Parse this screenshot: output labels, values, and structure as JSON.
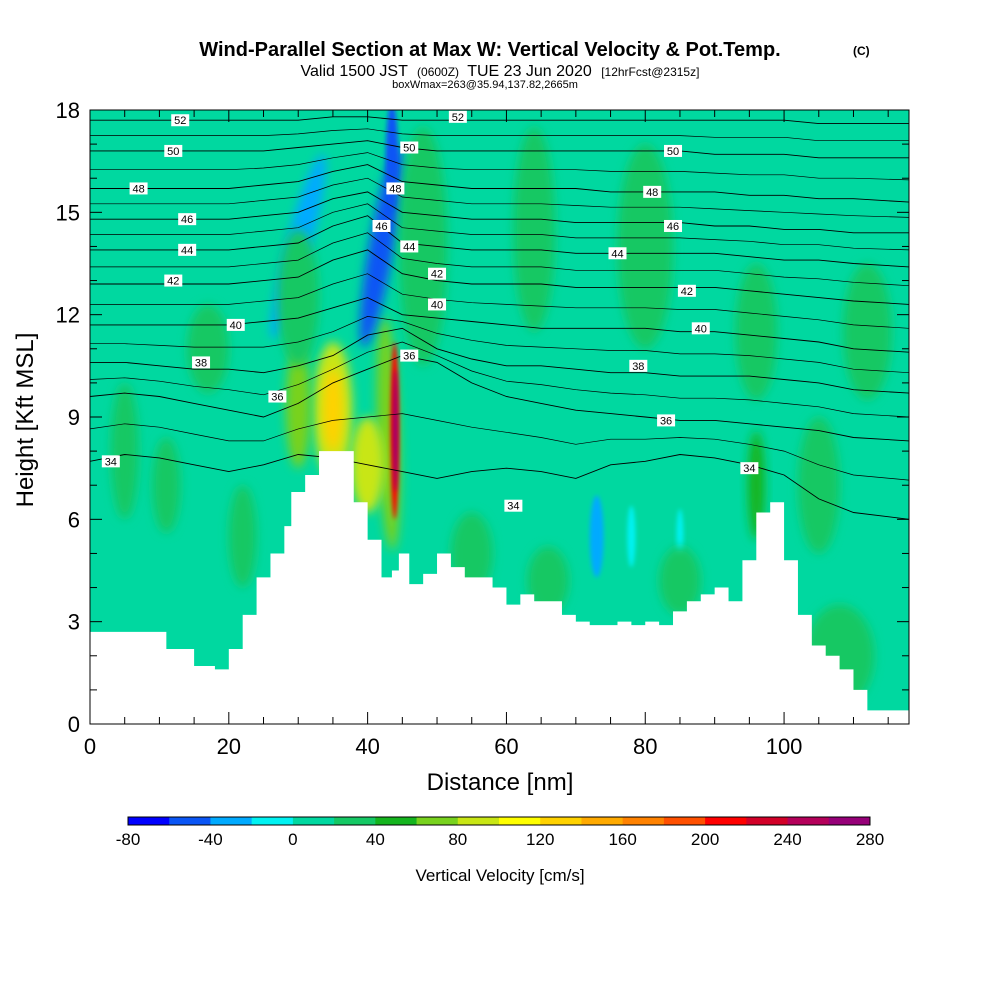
{
  "chart_data": {
    "type": "heatmap",
    "title": "Wind-Parallel Section at Max W: Vertical Velocity & Pot.Temp.",
    "title_mark": "(C)",
    "subtitle_main": "Valid 1500 JST",
    "subtitle_utc": "(0600Z)",
    "subtitle_date": "TUE 23 Jun 2020",
    "subtitle_fcst": "[12hrFcst@2315z]",
    "subtitle2": "boxWmax=263@35.94,137.82,2665m",
    "xlabel": "Distance [nm]",
    "ylabel": "Height [Kft MSL]",
    "xlim": [
      0,
      118
    ],
    "ylim": [
      0,
      18
    ],
    "xticks": [
      "0",
      "20",
      "40",
      "60",
      "80",
      "100"
    ],
    "yticks": [
      "0",
      "3",
      "6",
      "9",
      "12",
      "15",
      "18"
    ],
    "colorbar": {
      "label": "Vertical Velocity [cm/s]",
      "min": -80,
      "max": 280,
      "step": 20,
      "tick_labels": [
        "-80",
        "-40",
        "0",
        "40",
        "80",
        "120",
        "160",
        "200",
        "240",
        "280"
      ],
      "colors": [
        "#0000ff",
        "#0a55f5",
        "#00aaff",
        "#00f2f2",
        "#00d8a0",
        "#14c864",
        "#14b41e",
        "#78d21e",
        "#c8e614",
        "#ffff00",
        "#ffd200",
        "#ffaa00",
        "#ff8200",
        "#ff5000",
        "#ff0000",
        "#d20028",
        "#b4005a",
        "#960078"
      ]
    },
    "terrain": {
      "x": [
        0,
        6,
        11,
        15,
        18,
        20,
        22,
        24,
        26,
        28,
        29,
        31,
        33,
        36,
        38,
        40,
        42,
        43.5,
        44.5,
        46,
        48,
        50,
        52,
        54,
        56,
        58,
        60,
        62,
        64,
        66,
        68,
        70,
        72,
        74,
        76,
        78,
        80,
        82,
        84,
        86,
        88,
        90,
        92,
        94,
        96,
        98,
        100,
        102,
        104,
        106,
        108,
        110,
        112,
        118
      ],
      "heights_kft": [
        2.7,
        2.7,
        2.2,
        1.7,
        1.6,
        2.2,
        3.2,
        4.3,
        5.0,
        5.8,
        6.8,
        7.3,
        8.0,
        8.0,
        6.5,
        5.4,
        4.3,
        4.5,
        5.0,
        4.1,
        4.4,
        5.0,
        4.6,
        4.3,
        4.3,
        4.0,
        3.5,
        3.8,
        3.6,
        3.6,
        3.2,
        3.0,
        2.9,
        2.9,
        3.0,
        2.9,
        3.0,
        2.9,
        3.3,
        3.6,
        3.8,
        4.0,
        3.6,
        4.8,
        6.2,
        6.5,
        4.8,
        3.2,
        2.3,
        2.0,
        1.6,
        1.0,
        0.4,
        0.4
      ]
    },
    "theta_contours": [
      {
        "value": 34,
        "label": "34",
        "heights_kft": [
          7.7,
          7.9,
          7.8,
          7.6,
          7.4,
          7.6,
          7.9,
          7.8,
          7.6,
          7.4,
          7.2,
          7.4,
          7.5,
          7.4,
          7.2,
          7.6,
          7.7,
          7.9,
          7.8,
          7.6,
          7.3,
          6.6,
          6.2,
          6.0
        ]
      },
      {
        "value": 36,
        "label": "36",
        "heights_kft": [
          9.6,
          9.7,
          9.6,
          9.4,
          9.2,
          9.0,
          9.4,
          10.0,
          10.4,
          10.8,
          10.6,
          10.0,
          9.6,
          9.4,
          9.2,
          9.1,
          9.0,
          8.9,
          8.9,
          8.8,
          8.7,
          8.6,
          8.4,
          8.3
        ]
      },
      {
        "value": 38,
        "label": "38",
        "heights_kft": [
          10.6,
          10.6,
          10.5,
          10.4,
          10.4,
          10.3,
          10.5,
          10.8,
          11.4,
          11.6,
          11.0,
          10.7,
          10.5,
          10.5,
          10.4,
          10.3,
          10.3,
          10.2,
          10.2,
          10.2,
          10.1,
          10.0,
          9.8,
          9.7
        ]
      },
      {
        "value": 40,
        "label": "40",
        "heights_kft": [
          11.7,
          11.7,
          11.7,
          11.7,
          11.7,
          11.8,
          11.9,
          12.2,
          12.5,
          12.0,
          11.9,
          11.8,
          11.7,
          11.6,
          11.6,
          11.6,
          11.6,
          11.5,
          11.5,
          11.4,
          11.3,
          11.2,
          11.0,
          10.9
        ]
      },
      {
        "value": 42,
        "label": "42",
        "heights_kft": [
          12.9,
          12.9,
          12.9,
          12.9,
          12.9,
          13.0,
          13.1,
          13.6,
          13.9,
          13.2,
          13.0,
          12.9,
          12.9,
          12.9,
          12.8,
          12.8,
          12.8,
          12.8,
          12.8,
          12.7,
          12.6,
          12.5,
          12.4,
          12.3
        ]
      },
      {
        "value": 44,
        "label": "44",
        "heights_kft": [
          13.9,
          13.9,
          13.9,
          13.9,
          13.9,
          14.0,
          14.1,
          14.6,
          14.9,
          14.1,
          14.0,
          13.9,
          13.9,
          13.9,
          13.8,
          13.8,
          13.8,
          13.8,
          13.8,
          13.7,
          13.6,
          13.6,
          13.5,
          13.4
        ]
      },
      {
        "value": 46,
        "label": "46",
        "heights_kft": [
          14.8,
          14.8,
          14.8,
          14.8,
          14.8,
          14.9,
          15.0,
          15.4,
          15.6,
          15.0,
          14.9,
          14.8,
          14.8,
          14.8,
          14.7,
          14.7,
          14.7,
          14.7,
          14.6,
          14.6,
          14.5,
          14.5,
          14.4,
          14.4
        ]
      },
      {
        "value": 48,
        "label": "48",
        "heights_kft": [
          15.7,
          15.7,
          15.7,
          15.7,
          15.7,
          15.8,
          15.9,
          16.2,
          16.4,
          15.9,
          15.8,
          15.7,
          15.7,
          15.7,
          15.7,
          15.6,
          15.6,
          15.6,
          15.6,
          15.5,
          15.5,
          15.4,
          15.4,
          15.3
        ]
      },
      {
        "value": 50,
        "label": "50",
        "heights_kft": [
          16.8,
          16.8,
          16.8,
          16.8,
          16.8,
          16.8,
          16.9,
          17.0,
          17.1,
          16.9,
          16.8,
          16.8,
          16.8,
          16.8,
          16.8,
          16.8,
          16.8,
          16.8,
          16.7,
          16.7,
          16.7,
          16.6,
          16.6,
          16.6
        ]
      },
      {
        "value": 52,
        "label": "52",
        "heights_kft": [
          17.7,
          17.7,
          17.7,
          17.7,
          17.7,
          17.7,
          17.7,
          17.8,
          17.8,
          17.7,
          17.7,
          17.7,
          17.7,
          17.7,
          17.7,
          17.7,
          17.7,
          17.7,
          17.7,
          17.7,
          17.7,
          17.6,
          17.6,
          17.6
        ]
      }
    ],
    "theta_contour_x": [
      0,
      5,
      10,
      15,
      20,
      25,
      30,
      35,
      40,
      45,
      50,
      55,
      60,
      65,
      70,
      75,
      80,
      85,
      90,
      95,
      100,
      105,
      110,
      118
    ],
    "theta_label_positions": [
      {
        "text": "34",
        "x": 3,
        "y": 7.7
      },
      {
        "text": "34",
        "x": 61,
        "y": 6.4
      },
      {
        "text": "34",
        "x": 95,
        "y": 7.5
      },
      {
        "text": "36",
        "x": 27,
        "y": 9.6
      },
      {
        "text": "36",
        "x": 46,
        "y": 10.8
      },
      {
        "text": "36",
        "x": 83,
        "y": 8.9
      },
      {
        "text": "38",
        "x": 16,
        "y": 10.6
      },
      {
        "text": "38",
        "x": 79,
        "y": 10.5
      },
      {
        "text": "40",
        "x": 21,
        "y": 11.7
      },
      {
        "text": "40",
        "x": 50,
        "y": 12.3
      },
      {
        "text": "40",
        "x": 88,
        "y": 11.6
      },
      {
        "text": "42",
        "x": 12,
        "y": 13.0
      },
      {
        "text": "42",
        "x": 50,
        "y": 13.2
      },
      {
        "text": "42",
        "x": 86,
        "y": 12.7
      },
      {
        "text": "44",
        "x": 14,
        "y": 13.9
      },
      {
        "text": "44",
        "x": 46,
        "y": 14.0
      },
      {
        "text": "44",
        "x": 76,
        "y": 13.8
      },
      {
        "text": "46",
        "x": 14,
        "y": 14.8
      },
      {
        "text": "46",
        "x": 42,
        "y": 14.6
      },
      {
        "text": "46",
        "x": 84,
        "y": 14.6
      },
      {
        "text": "48",
        "x": 7,
        "y": 15.7
      },
      {
        "text": "48",
        "x": 44,
        "y": 15.7
      },
      {
        "text": "48",
        "x": 81,
        "y": 15.6
      },
      {
        "text": "50",
        "x": 12,
        "y": 16.8
      },
      {
        "text": "50",
        "x": 46,
        "y": 16.9
      },
      {
        "text": "50",
        "x": 84,
        "y": 16.8
      },
      {
        "text": "52",
        "x": 13,
        "y": 17.7
      },
      {
        "text": "52",
        "x": 53,
        "y": 17.8
      }
    ],
    "w_features": [
      {
        "x": 43,
        "y": 8.5,
        "rx": 1.6,
        "ry": 3.4,
        "w": 70,
        "rot": -2
      },
      {
        "x": 43.9,
        "y": 8.6,
        "rx": 0.6,
        "ry": 2.6,
        "w": 200
      },
      {
        "x": 44.0,
        "y": 8.6,
        "rx": 0.35,
        "ry": 1.8,
        "w": 260
      },
      {
        "x": 40,
        "y": 7.6,
        "rx": 2.4,
        "ry": 1.4,
        "w": 90
      },
      {
        "x": 35,
        "y": 9.2,
        "rx": 2.8,
        "ry": 2.0,
        "w": 80
      },
      {
        "x": 30,
        "y": 9.3,
        "rx": 1.8,
        "ry": 1.8,
        "w": 70
      },
      {
        "x": 35,
        "y": 9.2,
        "rx": 1.4,
        "ry": 1.2,
        "w": 120
      },
      {
        "x": 42,
        "y": 14.0,
        "rx": 1.8,
        "ry": 3.0,
        "w": -50,
        "rot": 10
      },
      {
        "x": 43.5,
        "y": 16.6,
        "rx": 0.9,
        "ry": 1.6,
        "w": -60
      },
      {
        "x": 30,
        "y": 14.0,
        "rx": 1.8,
        "ry": 2.8,
        "w": -25,
        "rot": 15
      },
      {
        "x": 73,
        "y": 5.5,
        "rx": 1.0,
        "ry": 1.2,
        "w": -40
      },
      {
        "x": 78,
        "y": 5.5,
        "rx": 0.6,
        "ry": 0.9,
        "w": -20
      },
      {
        "x": 85,
        "y": 5.5,
        "rx": 0.5,
        "ry": 0.8,
        "w": -15
      },
      {
        "x": 30,
        "y": 12.5,
        "rx": 3.0,
        "ry": 2.0,
        "w": 25
      },
      {
        "x": 48,
        "y": 14.0,
        "rx": 3.5,
        "ry": 3.5,
        "w": 20
      },
      {
        "x": 64,
        "y": 14.5,
        "rx": 3.0,
        "ry": 3.0,
        "w": 20
      },
      {
        "x": 80,
        "y": 14.0,
        "rx": 4.0,
        "ry": 3.0,
        "w": 20
      },
      {
        "x": 96,
        "y": 11.5,
        "rx": 3.0,
        "ry": 2.0,
        "w": 20
      },
      {
        "x": 112,
        "y": 11.5,
        "rx": 3.5,
        "ry": 2.0,
        "w": 20
      },
      {
        "x": 105,
        "y": 7.0,
        "rx": 3.0,
        "ry": 2.0,
        "w": 20
      },
      {
        "x": 17,
        "y": 11.0,
        "rx": 3.0,
        "ry": 1.3,
        "w": 20
      },
      {
        "x": 5,
        "y": 8.0,
        "rx": 2.0,
        "ry": 2.0,
        "w": 20
      },
      {
        "x": 11,
        "y": 7.0,
        "rx": 2.0,
        "ry": 1.4,
        "w": 20
      },
      {
        "x": 22,
        "y": 5.5,
        "rx": 2.0,
        "ry": 1.5,
        "w": 20
      },
      {
        "x": 55,
        "y": 5.0,
        "rx": 3.0,
        "ry": 1.2,
        "w": 25
      },
      {
        "x": 66,
        "y": 4.2,
        "rx": 3.0,
        "ry": 1.0,
        "w": 35
      },
      {
        "x": 85,
        "y": 4.2,
        "rx": 3.0,
        "ry": 1.0,
        "w": 35
      },
      {
        "x": 108,
        "y": 2.0,
        "rx": 5.0,
        "ry": 1.5,
        "w": 30
      },
      {
        "x": 96,
        "y": 7.0,
        "rx": 1.2,
        "ry": 1.6,
        "w": 40
      }
    ]
  }
}
